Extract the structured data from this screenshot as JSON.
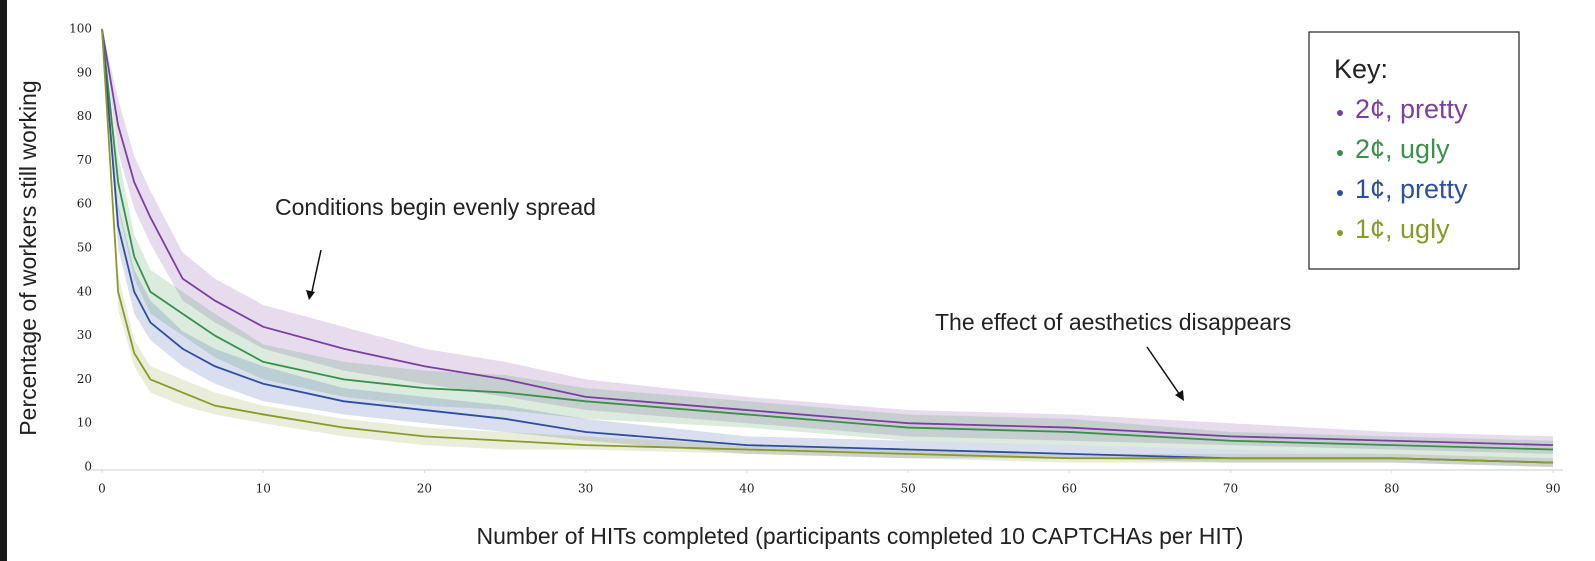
{
  "chart_data": {
    "type": "line",
    "xlabel": "Number of HITs completed (participants completed 10 CAPTCHAs per HIT)",
    "ylabel": "Percentage of workers still working",
    "x": [
      0,
      1,
      2,
      3,
      5,
      7,
      10,
      15,
      20,
      25,
      30,
      40,
      50,
      60,
      70,
      80,
      90
    ],
    "series": [
      {
        "name": "2¢, pretty",
        "color": "#7b3fa0",
        "values": [
          100,
          78,
          65,
          57,
          43,
          38,
          32,
          27,
          23,
          20,
          16,
          13,
          10,
          9,
          7,
          6,
          5
        ],
        "lower": [
          100,
          72,
          59,
          51,
          38,
          33,
          27,
          22,
          19,
          16,
          13,
          10,
          7,
          6,
          5,
          4,
          3
        ],
        "upper": [
          100,
          84,
          71,
          63,
          49,
          43,
          37,
          32,
          27,
          24,
          20,
          16,
          13,
          12,
          10,
          8,
          7
        ]
      },
      {
        "name": "2¢, ugly",
        "color": "#3a8f4a",
        "values": [
          100,
          65,
          48,
          40,
          35,
          30,
          24,
          20,
          18,
          17,
          15,
          12,
          9,
          8,
          6,
          5,
          4
        ],
        "lower": [
          100,
          59,
          43,
          35,
          30,
          25,
          20,
          16,
          14,
          13,
          11,
          9,
          6,
          5,
          4,
          3,
          2
        ],
        "upper": [
          100,
          71,
          53,
          45,
          40,
          35,
          28,
          24,
          22,
          21,
          18,
          15,
          12,
          11,
          8,
          7,
          6
        ]
      },
      {
        "name": "1¢, pretty",
        "color": "#2e4fa0",
        "values": [
          100,
          55,
          40,
          33,
          27,
          23,
          19,
          15,
          13,
          11,
          8,
          5,
          4,
          3,
          2,
          2,
          1
        ],
        "lower": [
          100,
          50,
          35,
          29,
          23,
          19,
          15,
          12,
          10,
          8,
          6,
          3,
          2,
          2,
          1,
          1,
          0
        ],
        "upper": [
          100,
          60,
          45,
          38,
          31,
          27,
          23,
          18,
          16,
          14,
          11,
          7,
          6,
          5,
          4,
          3,
          2
        ]
      },
      {
        "name": "1¢, ugly",
        "color": "#8a9a2a",
        "values": [
          100,
          40,
          26,
          20,
          17,
          14,
          12,
          9,
          7,
          6,
          5,
          4,
          3,
          2,
          2,
          2,
          1
        ],
        "lower": [
          100,
          36,
          23,
          17,
          14,
          12,
          10,
          7,
          5,
          4,
          4,
          3,
          2,
          1,
          1,
          1,
          0
        ],
        "upper": [
          100,
          44,
          29,
          23,
          20,
          17,
          14,
          11,
          9,
          8,
          7,
          5,
          4,
          3,
          3,
          3,
          2
        ]
      }
    ],
    "legend_title": "Key:",
    "annotations": [
      "Conditions begin evenly spread",
      "The effect of aesthetics disappears"
    ],
    "xlim": [
      0,
      90
    ],
    "xticks": [
      0,
      10,
      20,
      30,
      40,
      50,
      60,
      70,
      80,
      90
    ],
    "ylim": [
      0,
      100
    ],
    "yticks": [
      0,
      10,
      20,
      30,
      40,
      50,
      60,
      70,
      80,
      90,
      100
    ],
    "grid": false
  }
}
